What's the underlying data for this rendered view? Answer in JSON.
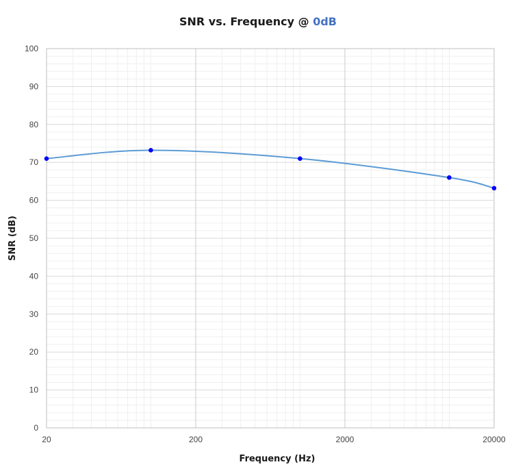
{
  "chart_data": {
    "type": "line",
    "title": "SNR vs. Frequency @ ",
    "title_highlight": "0dB",
    "xlabel": "Frequency (Hz)",
    "ylabel": "SNR (dB)",
    "x_scale": "log",
    "xlim": [
      20,
      20000
    ],
    "ylim": [
      0,
      100
    ],
    "x_ticks": [
      20,
      200,
      2000,
      20000
    ],
    "y_ticks": [
      0,
      10,
      20,
      30,
      40,
      50,
      60,
      70,
      80,
      90,
      100
    ],
    "grid": true,
    "legend": "none",
    "series": [
      {
        "x": [
          20,
          100,
          1000,
          10000,
          20000
        ],
        "y": [
          71,
          73.2,
          71,
          66,
          63.2
        ],
        "color": "#5b9bd5",
        "marker_color": "#0000ff",
        "smooth": true
      }
    ]
  }
}
